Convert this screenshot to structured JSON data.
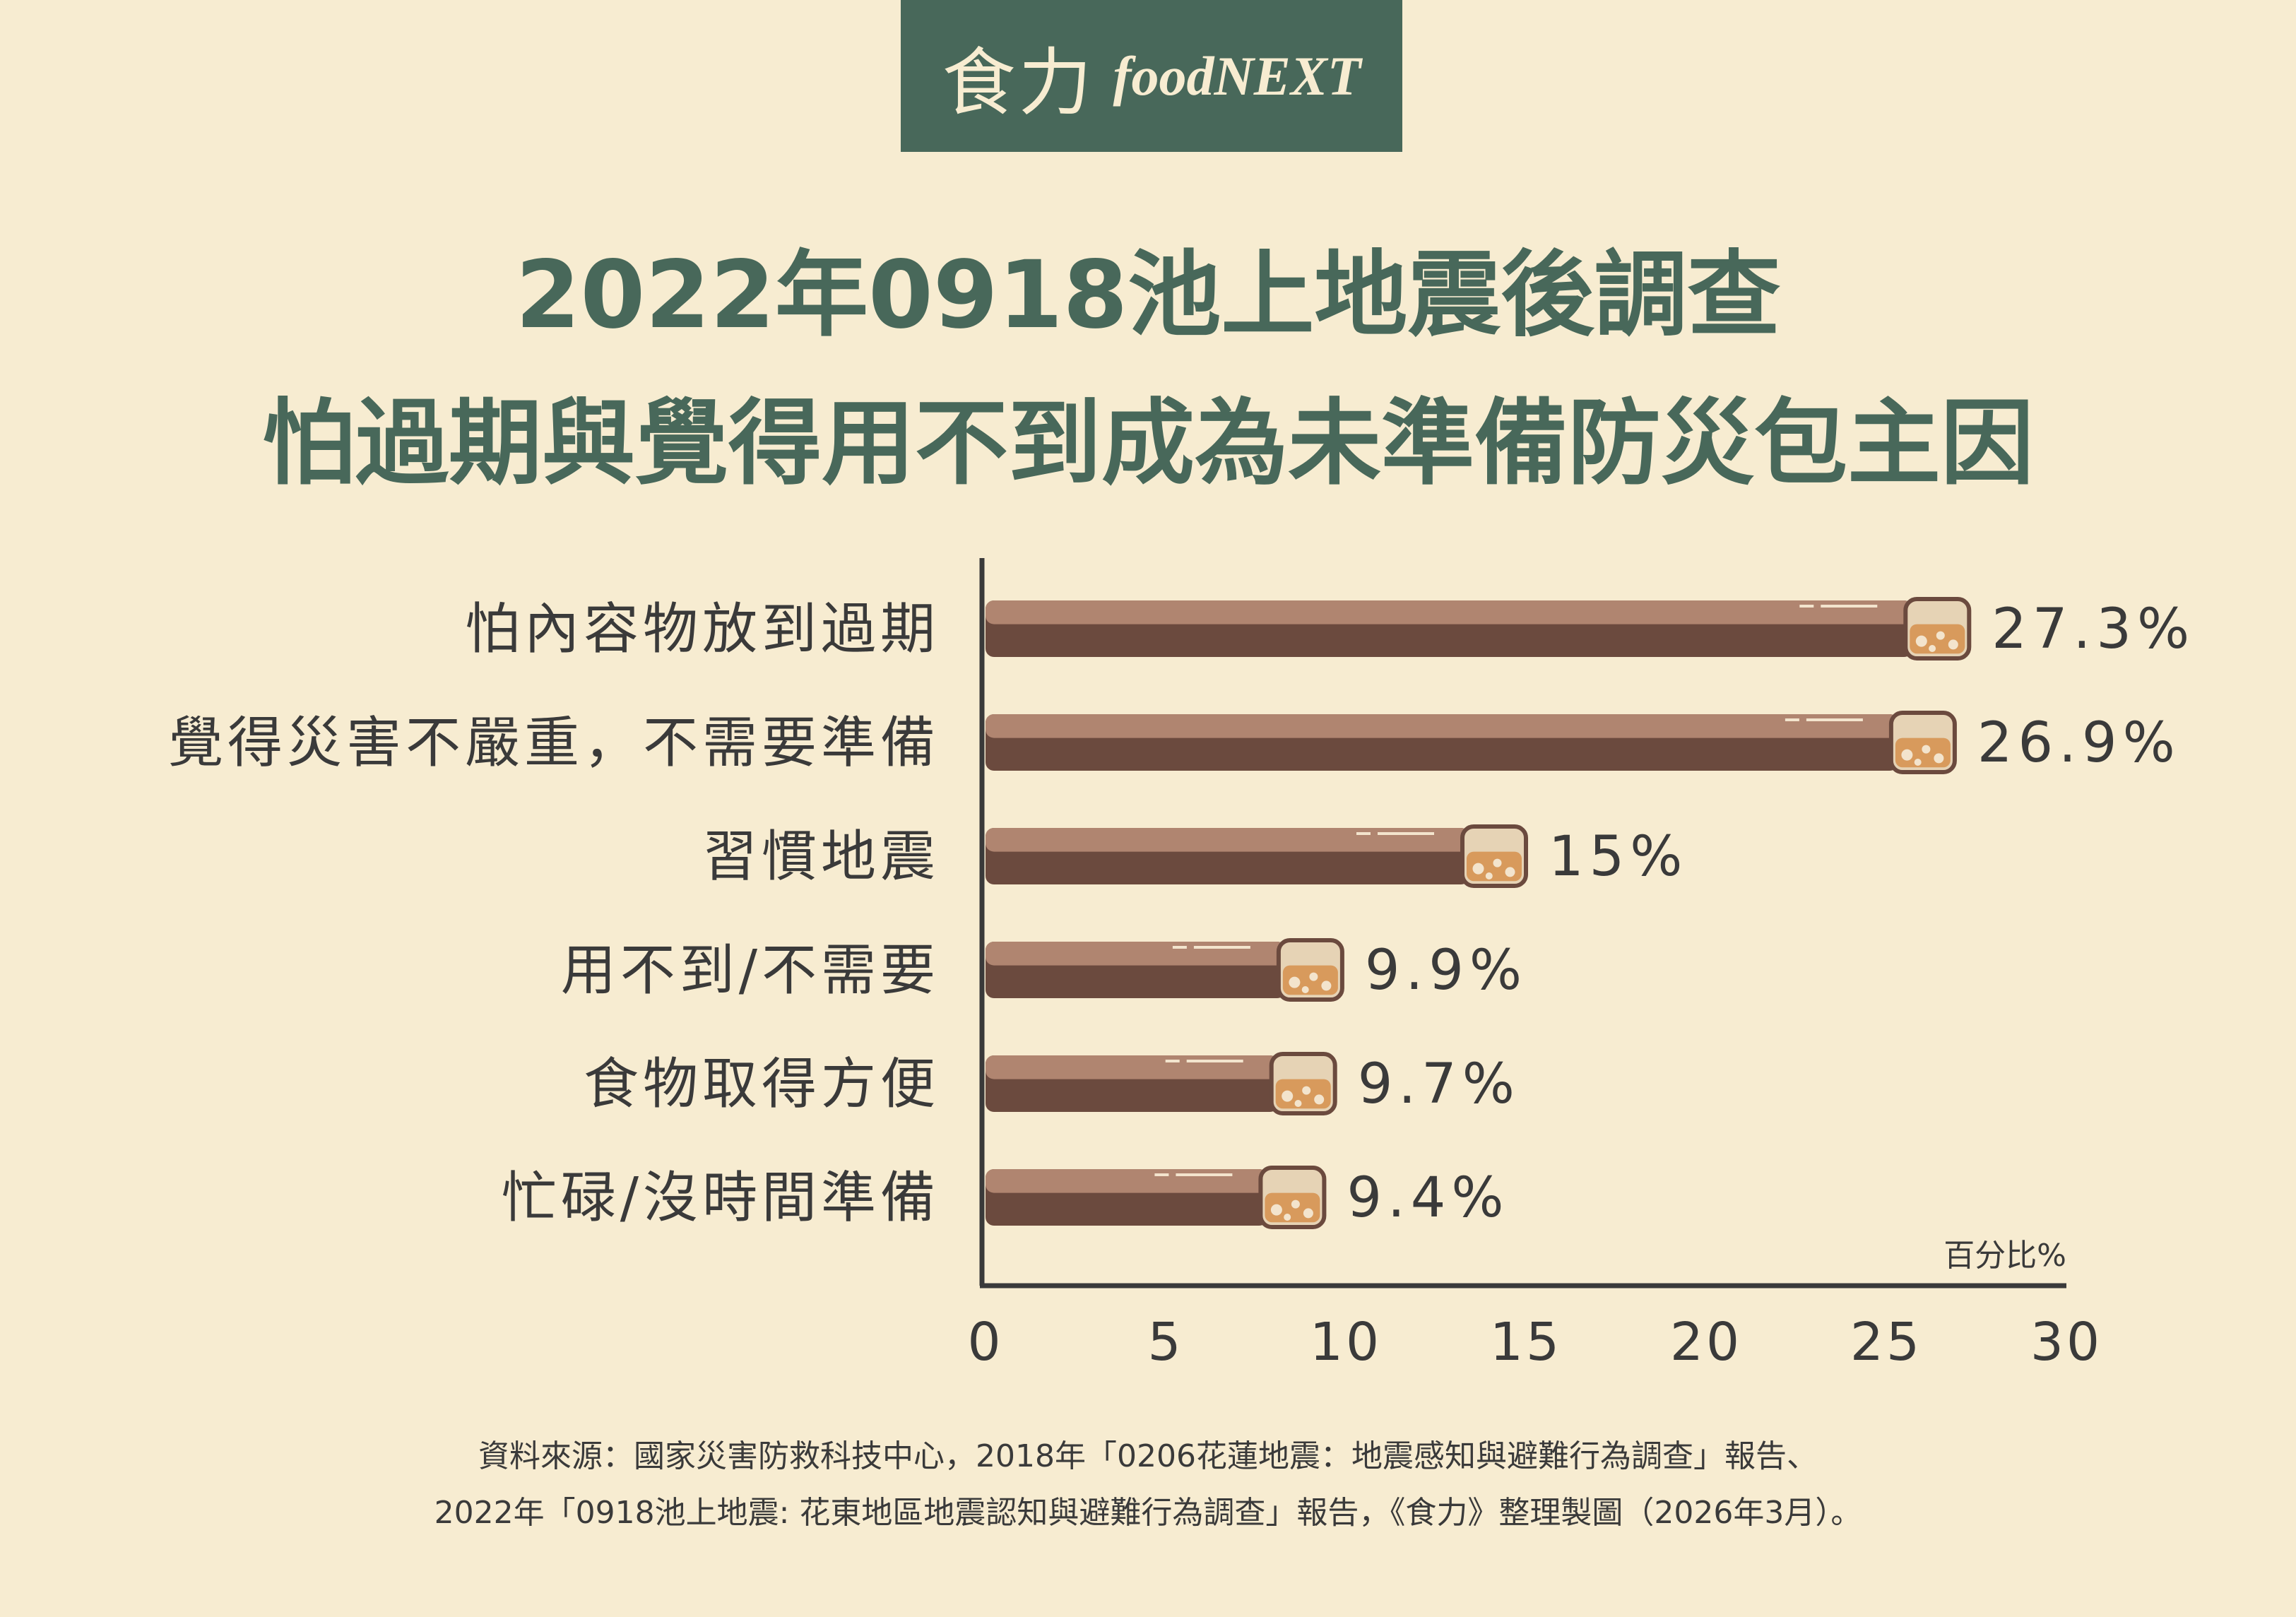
{
  "logo": {
    "chinese": "食力",
    "english": "foodNEXT"
  },
  "chart_data": {
    "type": "bar",
    "orientation": "horizontal",
    "title_line1": "2022年0918池上地震後調查",
    "title_line2": "怕過期與覺得用不到成為未準備防災包主因",
    "categories": [
      "怕內容物放到過期",
      "覺得災害不嚴重，不需要準備",
      "習慣地震",
      "用不到/不需要",
      "食物取得方便",
      "忙碌/沒時間準備"
    ],
    "values": [
      27.3,
      26.9,
      15,
      9.9,
      9.7,
      9.4
    ],
    "value_labels": [
      "27.3%",
      "26.9%",
      "15%",
      "9.9%",
      "9.7%",
      "9.4%"
    ],
    "unit_label": "百分比%",
    "xlim": [
      0,
      30
    ],
    "xticks": [
      0,
      5,
      10,
      15,
      20,
      25,
      30
    ],
    "grid": false,
    "colors": {
      "bar_top": "#b08570",
      "bar_bottom": "#6b4a3e",
      "cap_fill": "#e6d3b5",
      "cap_liquid": "#d89a5c",
      "title": "#48685a"
    }
  },
  "source": {
    "line1": "資料來源：國家災害防救科技中心，2018年「0206花蓮地震：地震感知與避難行為調查」報告、",
    "line2": "2022年「0918池上地震: 花東地區地震認知與避難行為調查」報告，《食力》整理製圖（2026年3月）。"
  }
}
